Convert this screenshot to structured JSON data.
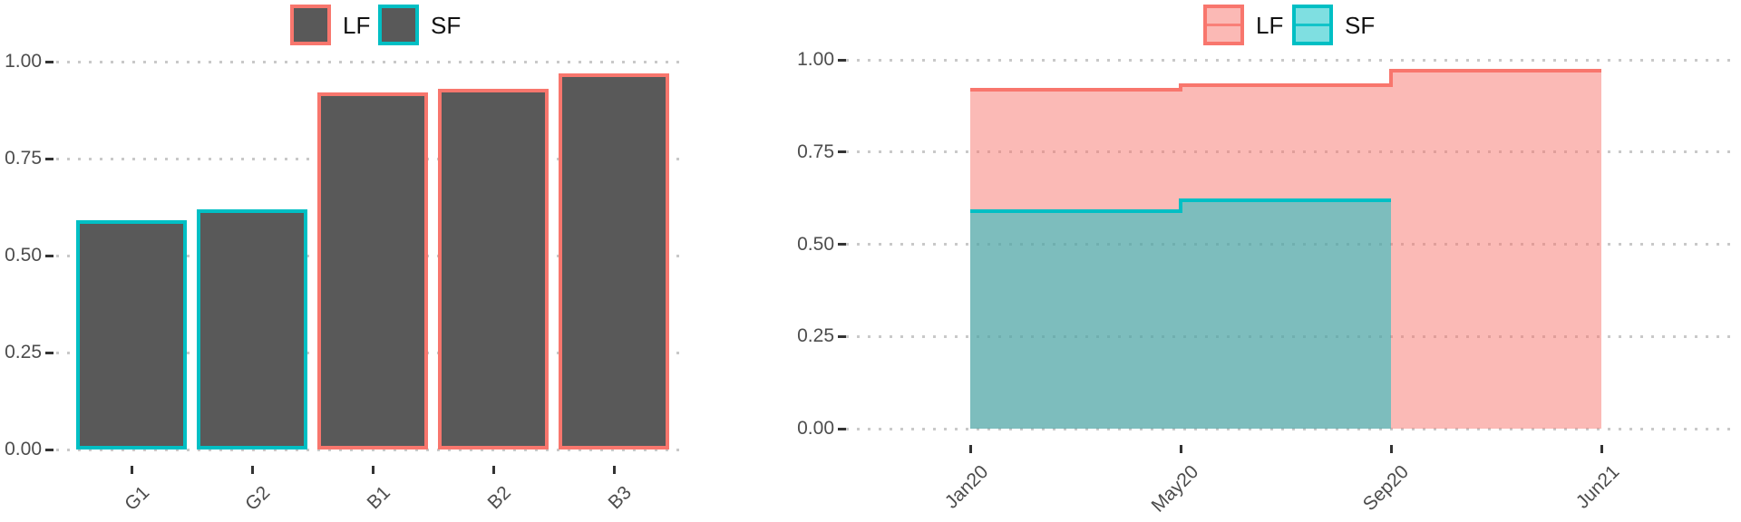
{
  "chart_data": [
    {
      "type": "bar",
      "title": "",
      "categories": [
        "G1",
        "G2",
        "B1",
        "B2",
        "B3"
      ],
      "values": [
        0.59,
        0.62,
        0.92,
        0.93,
        0.97
      ],
      "bar_outline_series": [
        "SF",
        "SF",
        "LF",
        "LF",
        "LF"
      ],
      "bar_outline_colors": [
        "#00BFC4",
        "#00BFC4",
        "#F8766D",
        "#F8766D",
        "#F8766D"
      ],
      "bar_fill": "#595959",
      "ylim": [
        0,
        1
      ],
      "y_tick_labels": [
        "1.00",
        "0.75",
        "0.50",
        "0.25",
        "0.00"
      ],
      "grid": "dotted-horizontal",
      "legend_position": "top",
      "legend": [
        {
          "label": "LF",
          "border": "#F8766D",
          "key_fill": "#595959",
          "key_line": null
        },
        {
          "label": "SF",
          "border": "#00BFC4",
          "key_fill": "#595959",
          "key_line": null
        }
      ]
    },
    {
      "type": "area",
      "subtype": "step",
      "title": "",
      "x": [
        "Jan20",
        "May20",
        "Sep20",
        "Jun21"
      ],
      "series": [
        {
          "name": "LF",
          "color": "#F8766D",
          "fill": "rgba(248,118,109,0.5)",
          "step_levels": [
            0.92,
            0.93,
            0.97
          ],
          "spans": [
            [
              "Jan20",
              "May20"
            ],
            [
              "May20",
              "Sep20"
            ],
            [
              "Sep20",
              "Jun21"
            ]
          ]
        },
        {
          "name": "SF",
          "color": "#00BFC4",
          "fill": "rgba(0,191,196,0.5)",
          "step_levels": [
            0.59,
            0.62
          ],
          "spans": [
            [
              "Jan20",
              "May20"
            ],
            [
              "May20",
              "Sep20"
            ]
          ]
        }
      ],
      "ylim": [
        0,
        1
      ],
      "y_tick_labels": [
        "1.00",
        "0.75",
        "0.50",
        "0.25",
        "0.00"
      ],
      "grid": "dotted-horizontal",
      "legend_position": "top",
      "legend": [
        {
          "label": "LF",
          "border": "#F8766D",
          "key_fill": "#FBB9B5",
          "key_line": "#F8766D"
        },
        {
          "label": "SF",
          "border": "#00BFC4",
          "key_fill": "#7FDFE1",
          "key_line": "#00BFC4"
        }
      ]
    }
  ],
  "colors": {
    "lf_accent": "#F8766D",
    "sf_accent": "#00BFC4",
    "bar_fill": "#595959",
    "gridline": "#C9C9C9",
    "axis_text": "#4D4D4D",
    "tick_mark": "#333333"
  }
}
